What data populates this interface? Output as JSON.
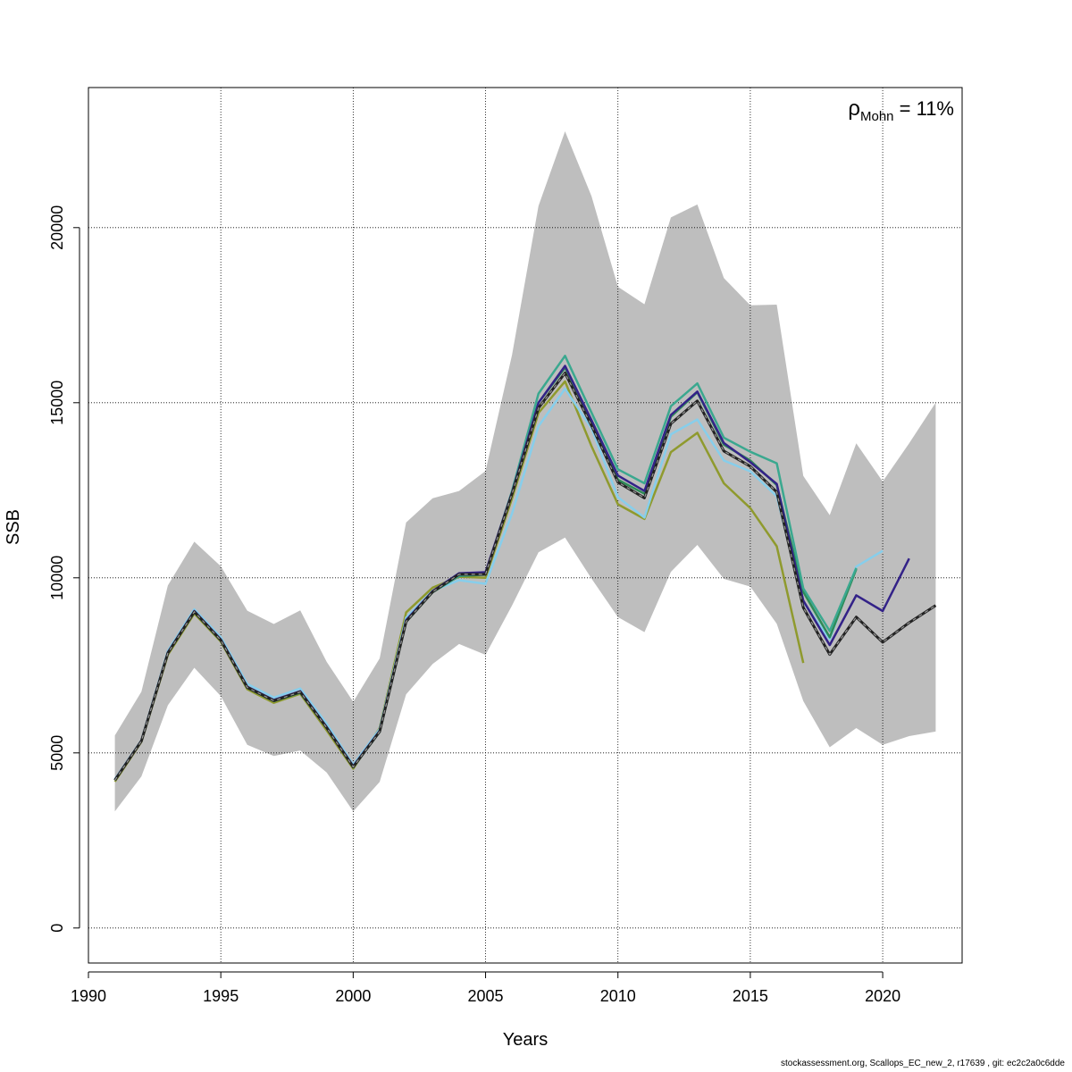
{
  "chart_data": {
    "type": "line",
    "title": "",
    "xlabel": "Years",
    "ylabel": "SSB",
    "xlim": [
      1990,
      2023
    ],
    "ylim": [
      -1000,
      24000
    ],
    "xticks": [
      1990,
      1995,
      2000,
      2005,
      2010,
      2015,
      2020
    ],
    "yticks": [
      0,
      5000,
      10000,
      15000,
      20000
    ],
    "grid": true,
    "annotation": {
      "rho_symbol": "ρ",
      "rho_subscript": "Mohn",
      "rho_value": " = 11%"
    },
    "confidence_band": {
      "x": [
        1991,
        1992,
        1993,
        1994,
        1995,
        1996,
        1997,
        1998,
        1999,
        2000,
        2001,
        2002,
        2003,
        2004,
        2005,
        2006,
        2007,
        2008,
        2009,
        2010,
        2011,
        2012,
        2013,
        2014,
        2015,
        2016,
        2017,
        2018,
        2019,
        2020,
        2021,
        2022
      ],
      "upper": [
        5500,
        6750,
        9780,
        11030,
        10330,
        9060,
        8680,
        9070,
        7600,
        6460,
        7700,
        11580,
        12270,
        12480,
        13050,
        16370,
        20620,
        22750,
        20900,
        18310,
        17810,
        20290,
        20660,
        18560,
        17780,
        17800,
        12910,
        11790,
        13840,
        12750,
        13840,
        15000
      ],
      "lower": [
        3330,
        4330,
        6360,
        7430,
        6620,
        5230,
        4910,
        5070,
        4440,
        3330,
        4170,
        6670,
        7540,
        8110,
        7800,
        9210,
        10730,
        11150,
        9980,
        8880,
        8450,
        10170,
        10940,
        9970,
        9750,
        8690,
        6480,
        5160,
        5710,
        5230,
        5480,
        5610
      ]
    },
    "colors": {
      "band": "#bebebe",
      "grid": "#000000"
    },
    "series": [
      {
        "color": "#8f9a2e",
        "dashed": false,
        "x": [
          1991,
          1992,
          1993,
          1994,
          1995,
          1996,
          1997,
          1998,
          1999,
          2000,
          2001,
          2002,
          2003,
          2004,
          2005,
          2006,
          2007,
          2008,
          2009,
          2010,
          2011,
          2012,
          2013,
          2014,
          2015,
          2016,
          2017
        ],
        "values": [
          4180,
          5320,
          7800,
          8980,
          8180,
          6820,
          6430,
          6690,
          5640,
          4550,
          5710,
          9010,
          9720,
          10030,
          10000,
          12270,
          14710,
          15610,
          13760,
          12100,
          11680,
          13590,
          14140,
          12700,
          11990,
          10900,
          7570
        ]
      },
      {
        "color": "#87ceeb",
        "dashed": false,
        "x": [
          1991,
          1992,
          1993,
          1994,
          1995,
          1996,
          1997,
          1998,
          1999,
          2000,
          2001,
          2002,
          2003,
          2004,
          2005,
          2006,
          2007,
          2008,
          2009,
          2010,
          2011,
          2012,
          2013,
          2014,
          2015,
          2016,
          2017,
          2018,
          2019,
          2020
        ],
        "values": [
          4250,
          5360,
          7910,
          9100,
          8300,
          6970,
          6580,
          6840,
          5830,
          4660,
          5680,
          8860,
          9630,
          9930,
          9830,
          11840,
          14330,
          15400,
          14270,
          12300,
          11720,
          14100,
          14520,
          13350,
          13040,
          12330,
          9320,
          8240,
          10320,
          10770
        ]
      },
      {
        "color": "#2e8b57",
        "dashed": false,
        "x": [
          1991,
          1992,
          1993,
          1994,
          1995,
          1996,
          1997,
          1998,
          1999,
          2000,
          2001,
          2002,
          2003,
          2004,
          2005,
          2006,
          2007,
          2008,
          2009,
          2010,
          2011,
          2012,
          2013,
          2014,
          2015,
          2016,
          2017,
          2018,
          2019
        ],
        "values": [
          4220,
          5340,
          7850,
          9020,
          8210,
          6860,
          6480,
          6720,
          5720,
          4590,
          5600,
          8740,
          9590,
          10050,
          10090,
          12420,
          15000,
          16000,
          14500,
          12800,
          12400,
          14600,
          15300,
          13800,
          13350,
          12650,
          9600,
          8300,
          10250
        ]
      },
      {
        "color": "#3aa88f",
        "dashed": false,
        "x": [
          1991,
          1992,
          1993,
          1994,
          1995,
          1996,
          1997,
          1998,
          1999,
          2000,
          2001,
          2002,
          2003,
          2004,
          2005,
          2006,
          2007,
          2008,
          2009,
          2010,
          2011,
          2012,
          2013,
          2014,
          2015,
          2016,
          2017,
          2018,
          2019
        ],
        "values": [
          4220,
          5350,
          7860,
          9030,
          8220,
          6870,
          6500,
          6740,
          5720,
          4600,
          5610,
          8760,
          9600,
          10060,
          10110,
          12480,
          15260,
          16340,
          14720,
          13100,
          12700,
          14900,
          15550,
          14000,
          13600,
          13270,
          9700,
          8480,
          10280
        ]
      },
      {
        "color": "#332288",
        "dashed": false,
        "x": [
          1991,
          1992,
          1993,
          1994,
          1995,
          1996,
          1997,
          1998,
          1999,
          2000,
          2001,
          2002,
          2003,
          2004,
          2005,
          2006,
          2007,
          2008,
          2009,
          2010,
          2011,
          2012,
          2013,
          2014,
          2015,
          2016,
          2017,
          2018,
          2019,
          2020,
          2021
        ],
        "values": [
          4230,
          5350,
          7870,
          9050,
          8240,
          6890,
          6510,
          6760,
          5740,
          4620,
          5630,
          8790,
          9620,
          10130,
          10160,
          12440,
          15000,
          16050,
          14500,
          12920,
          12480,
          14650,
          15320,
          13850,
          13300,
          12680,
          9350,
          8080,
          9500,
          9050,
          10550
        ]
      },
      {
        "color": "#222222",
        "dashed": true,
        "x": [
          1991,
          1992,
          1993,
          1994,
          1995,
          1996,
          1997,
          1998,
          1999,
          2000,
          2001,
          2002,
          2003,
          2004,
          2005,
          2006,
          2007,
          2008,
          2009,
          2010,
          2011,
          2012,
          2013,
          2014,
          2015,
          2016,
          2017,
          2018,
          2019,
          2020,
          2021,
          2022
        ],
        "values": [
          4220,
          5340,
          7850,
          9030,
          8220,
          6870,
          6490,
          6740,
          5720,
          4600,
          5610,
          8750,
          9600,
          10100,
          10100,
          12400,
          14850,
          15850,
          14350,
          12730,
          12280,
          14400,
          15050,
          13620,
          13180,
          12450,
          9150,
          7810,
          8880,
          8160,
          8720,
          9210
        ]
      }
    ]
  },
  "footer": "stockassessment.org, Scallops_EC_new_2, r17639 , git: ec2c2a0c6dde"
}
